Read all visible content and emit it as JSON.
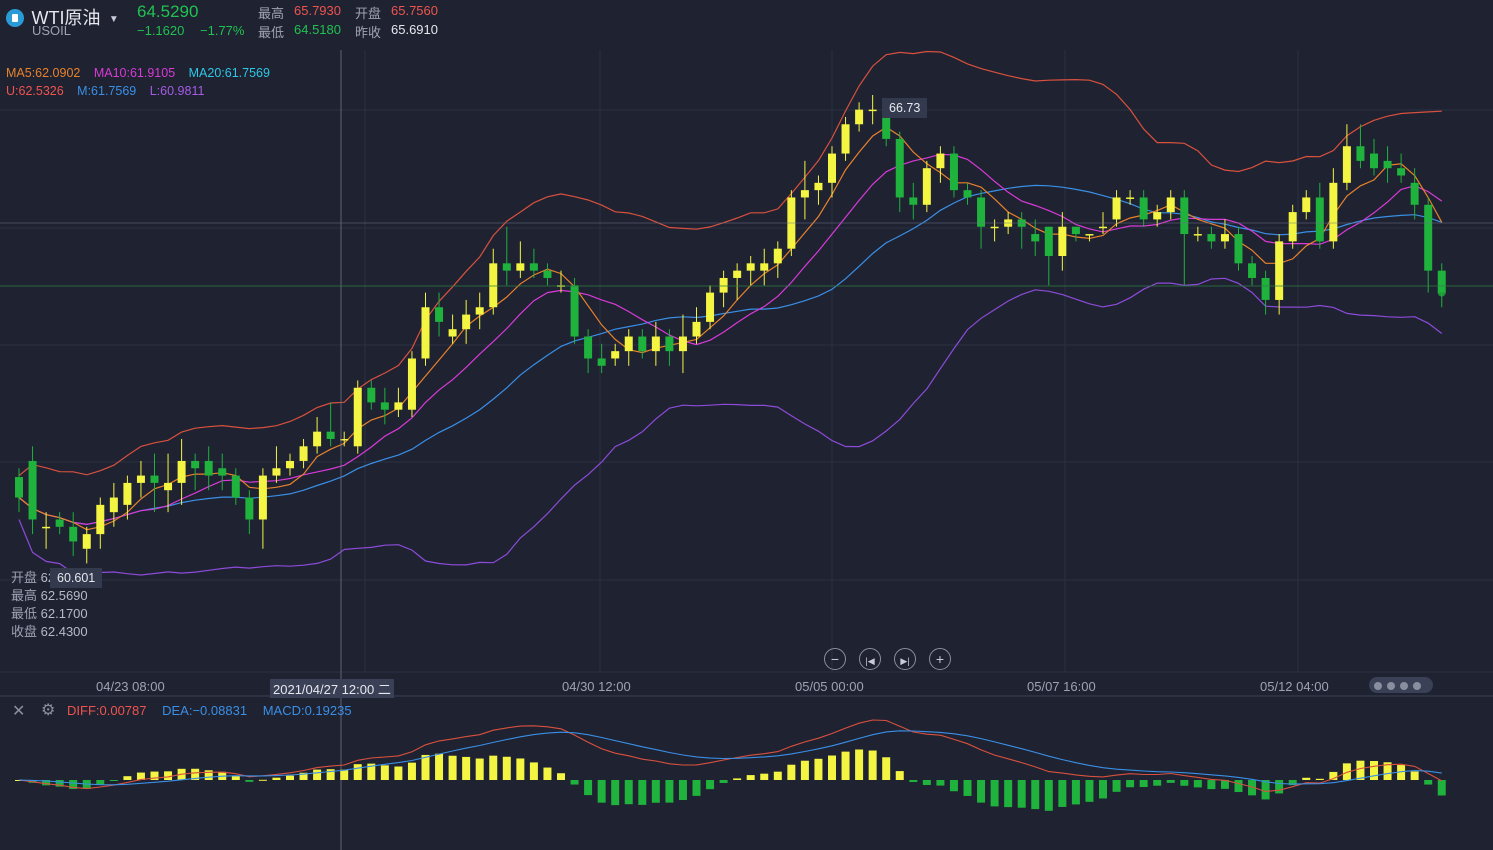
{
  "header": {
    "symbol_name": "WTI原油",
    "symbol_code": "USOIL",
    "last_price": "64.5290",
    "change": "−1.1620",
    "change_pct": "−1.77%",
    "high_label": "最高",
    "high_value": "65.7930",
    "open_label": "开盘",
    "open_value": "65.7560",
    "low_label": "最低",
    "low_value": "64.5180",
    "prev_close_label": "昨收",
    "prev_close_value": "65.6910"
  },
  "indicators": {
    "ma5": "MA5:62.0902",
    "ma10": "MA10:61.9105",
    "ma20": "MA20:61.7569",
    "boll_u": "U:62.5326",
    "boll_m": "M:61.7569",
    "boll_l": "L:60.9811"
  },
  "crosshair_ohlc": {
    "open_label": "开盘",
    "open_value": "62.",
    "high_label": "最高",
    "high_value": "62.5690",
    "low_label": "最低",
    "low_value": "62.1700",
    "close_label": "收盘",
    "close_value": "62.4300"
  },
  "annotations": {
    "max_label": "66.73",
    "min_label": "60.601"
  },
  "x_axis": {
    "labels": [
      "04/23 08:00",
      "04/30 12:00",
      "05/05 00:00",
      "05/07 16:00",
      "05/12 04:00"
    ],
    "crosshair_label": "2021/04/27 12:00 二"
  },
  "macd": {
    "diff": "DIFF:0.00787",
    "dea": "DEA:−0.08831",
    "macd": "MACD:0.19235"
  },
  "colors": {
    "background": "#1e2231",
    "up_candle": "#f3f542",
    "down_candle": "#1fb23d",
    "ma5": "#e8822b",
    "ma10": "#d93ad8",
    "ma20": "#3b8fe6",
    "boll_u": "#d9513e",
    "boll_l": "#8d4bd9",
    "macd_diff": "#d9513e",
    "macd_dea": "#3b8fe6",
    "price_up": "#f0544f",
    "price_down": "#20c251"
  },
  "chart_data": {
    "type": "candlestick",
    "price_range": [
      60.3,
      67.2
    ],
    "candles": [
      [
        61.98,
        61.7,
        62.1,
        61.5
      ],
      [
        62.2,
        61.4,
        62.4,
        61.2
      ],
      [
        61.3,
        61.3,
        61.5,
        61.0
      ],
      [
        61.4,
        61.3,
        61.5,
        61.2
      ],
      [
        61.3,
        61.1,
        61.5,
        60.9
      ],
      [
        61.0,
        61.2,
        61.3,
        60.8
      ],
      [
        61.2,
        61.6,
        61.7,
        61.0
      ],
      [
        61.5,
        61.7,
        61.9,
        61.3
      ],
      [
        61.6,
        61.9,
        62.0,
        61.4
      ],
      [
        61.9,
        62.0,
        62.2,
        61.7
      ],
      [
        62.0,
        61.9,
        62.3,
        61.5
      ],
      [
        61.8,
        61.9,
        62.3,
        61.5
      ],
      [
        61.9,
        62.2,
        62.5,
        61.6
      ],
      [
        62.2,
        62.1,
        62.3,
        61.8
      ],
      [
        62.2,
        62.0,
        62.4,
        61.8
      ],
      [
        62.1,
        62.0,
        62.3,
        61.8
      ],
      [
        62.0,
        61.7,
        62.1,
        61.6
      ],
      [
        61.7,
        61.4,
        61.8,
        61.2
      ],
      [
        61.4,
        62.0,
        62.1,
        61.0
      ],
      [
        62.0,
        62.1,
        62.4,
        61.9
      ],
      [
        62.1,
        62.2,
        62.3,
        62.0
      ],
      [
        62.2,
        62.4,
        62.5,
        62.1
      ],
      [
        62.4,
        62.6,
        62.8,
        62.3
      ],
      [
        62.6,
        62.5,
        63.0,
        62.4
      ],
      [
        62.5,
        62.5,
        62.6,
        62.4
      ],
      [
        62.4,
        63.2,
        63.3,
        62.3
      ],
      [
        63.2,
        63.0,
        63.3,
        62.9
      ],
      [
        63.0,
        62.9,
        63.2,
        62.7
      ],
      [
        62.9,
        63.0,
        63.2,
        62.8
      ],
      [
        62.9,
        63.6,
        63.7,
        62.8
      ],
      [
        63.6,
        64.3,
        64.5,
        63.5
      ],
      [
        64.3,
        64.1,
        64.5,
        63.9
      ],
      [
        63.9,
        64.0,
        64.2,
        63.8
      ],
      [
        64.0,
        64.2,
        64.4,
        63.8
      ],
      [
        64.2,
        64.3,
        64.5,
        64.0
      ],
      [
        64.3,
        64.9,
        65.1,
        64.2
      ],
      [
        64.9,
        64.8,
        65.4,
        64.6
      ],
      [
        64.8,
        64.9,
        65.2,
        64.7
      ],
      [
        64.9,
        64.8,
        65.1,
        64.7
      ],
      [
        64.8,
        64.7,
        64.9,
        64.6
      ],
      [
        64.6,
        64.6,
        64.8,
        64.5
      ],
      [
        64.6,
        63.9,
        64.7,
        63.8
      ],
      [
        63.9,
        63.6,
        64.0,
        63.4
      ],
      [
        63.6,
        63.5,
        63.8,
        63.4
      ],
      [
        63.6,
        63.7,
        63.8,
        63.5
      ],
      [
        63.7,
        63.9,
        64.0,
        63.5
      ],
      [
        63.9,
        63.7,
        64.0,
        63.6
      ],
      [
        63.7,
        63.9,
        64.1,
        63.5
      ],
      [
        63.9,
        63.7,
        64.0,
        63.5
      ],
      [
        63.7,
        63.9,
        64.2,
        63.4
      ],
      [
        63.9,
        64.1,
        64.3,
        63.8
      ],
      [
        64.1,
        64.5,
        64.6,
        64.0
      ],
      [
        64.5,
        64.7,
        64.8,
        64.3
      ],
      [
        64.7,
        64.8,
        64.9,
        64.4
      ],
      [
        64.8,
        64.9,
        65.0,
        64.6
      ],
      [
        64.8,
        64.9,
        65.1,
        64.6
      ],
      [
        64.9,
        65.1,
        65.2,
        64.7
      ],
      [
        65.1,
        65.8,
        65.9,
        65.0
      ],
      [
        65.8,
        65.9,
        66.3,
        65.5
      ],
      [
        65.9,
        66.0,
        66.1,
        65.7
      ],
      [
        66.0,
        66.4,
        66.5,
        65.8
      ],
      [
        66.4,
        66.8,
        66.9,
        66.3
      ],
      [
        66.8,
        67.0,
        67.1,
        66.7
      ],
      [
        67.0,
        67.0,
        67.2,
        66.8
      ],
      [
        67.0,
        66.6,
        67.1,
        66.5
      ],
      [
        66.6,
        65.8,
        66.7,
        65.6
      ],
      [
        65.8,
        65.7,
        66.0,
        65.5
      ],
      [
        65.7,
        66.2,
        66.3,
        65.6
      ],
      [
        66.2,
        66.4,
        66.5,
        66.0
      ],
      [
        66.4,
        65.9,
        66.5,
        65.8
      ],
      [
        65.9,
        65.8,
        66.0,
        65.7
      ],
      [
        65.8,
        65.4,
        65.9,
        65.1
      ],
      [
        65.4,
        65.4,
        65.5,
        65.2
      ],
      [
        65.4,
        65.5,
        65.6,
        65.3
      ],
      [
        65.5,
        65.4,
        65.6,
        65.1
      ],
      [
        65.3,
        65.2,
        65.5,
        65.0
      ],
      [
        65.4,
        65.0,
        65.4,
        64.6
      ],
      [
        65.0,
        65.4,
        65.6,
        64.8
      ],
      [
        65.4,
        65.3,
        65.4,
        65.2
      ],
      [
        65.3,
        65.3,
        65.3,
        65.2
      ],
      [
        65.4,
        65.4,
        65.6,
        65.3
      ],
      [
        65.5,
        65.8,
        65.9,
        65.4
      ],
      [
        65.8,
        65.8,
        65.9,
        65.7
      ],
      [
        65.8,
        65.5,
        65.9,
        65.4
      ],
      [
        65.5,
        65.6,
        65.7,
        65.4
      ],
      [
        65.6,
        65.8,
        65.9,
        65.5
      ],
      [
        65.8,
        65.3,
        65.9,
        64.6
      ],
      [
        65.3,
        65.3,
        65.4,
        65.2
      ],
      [
        65.3,
        65.2,
        65.4,
        65.1
      ],
      [
        65.2,
        65.3,
        65.5,
        65.1
      ],
      [
        65.3,
        64.9,
        65.4,
        64.8
      ],
      [
        64.9,
        64.7,
        65.0,
        64.6
      ],
      [
        64.7,
        64.4,
        64.8,
        64.2
      ],
      [
        64.4,
        65.2,
        65.3,
        64.2
      ],
      [
        65.2,
        65.6,
        65.7,
        65.1
      ],
      [
        65.6,
        65.8,
        65.9,
        65.5
      ],
      [
        65.8,
        65.2,
        66.0,
        65.1
      ],
      [
        65.2,
        66.0,
        66.2,
        65.1
      ],
      [
        66.0,
        66.5,
        66.8,
        65.9
      ],
      [
        66.5,
        66.3,
        66.8,
        66.2
      ],
      [
        66.4,
        66.2,
        66.6,
        66.1
      ],
      [
        66.3,
        66.2,
        66.5,
        66.0
      ],
      [
        66.2,
        66.1,
        66.4,
        66.0
      ],
      [
        66.0,
        65.7,
        66.2,
        65.5
      ],
      [
        65.7,
        64.8,
        65.8,
        64.5
      ],
      [
        64.8,
        64.5,
        64.9,
        64.3
      ]
    ]
  }
}
